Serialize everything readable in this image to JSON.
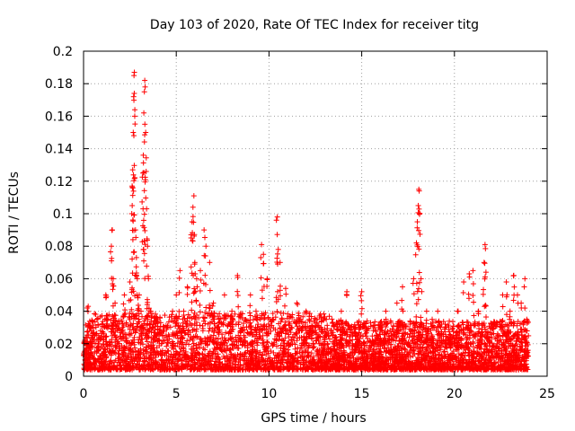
{
  "chart_data": {
    "type": "scatter",
    "title": "Day 103 of 2020, Rate Of TEC Index for receiver titg",
    "xlabel": "GPS time / hours",
    "ylabel": "ROTI / TECUs",
    "xlim": [
      0,
      25
    ],
    "ylim": [
      0,
      0.2
    ],
    "xticks": [
      0,
      5,
      10,
      15,
      20,
      25
    ],
    "yticks": [
      0,
      0.02,
      0.04,
      0.06,
      0.08,
      0.1,
      0.12,
      0.14,
      0.16,
      0.18,
      0.2
    ],
    "xtick_labels": [
      "0",
      "5",
      "10",
      "15",
      "20",
      "25"
    ],
    "ytick_labels": [
      "0",
      "0.02",
      "0.04",
      "0.06",
      "0.08",
      "0.1",
      "0.12",
      "0.14",
      "0.16",
      "0.18",
      "0.2"
    ],
    "grid": true,
    "marker": "+",
    "color": "#ff0000",
    "series": [
      {
        "name": "ROTI",
        "points": [
          [
            0.1,
            0.012
          ],
          [
            0.15,
            0.02
          ],
          [
            0.2,
            0.042
          ],
          [
            0.25,
            0.043
          ],
          [
            0.3,
            0.03
          ],
          [
            0.35,
            0.018
          ],
          [
            0.4,
            0.008
          ],
          [
            0.5,
            0.025
          ],
          [
            0.6,
            0.015
          ],
          [
            0.8,
            0.02
          ],
          [
            1.0,
            0.01
          ],
          [
            1.2,
            0.05
          ],
          [
            1.3,
            0.035
          ],
          [
            1.5,
            0.08
          ],
          [
            1.55,
            0.09
          ],
          [
            1.6,
            0.06
          ],
          [
            1.7,
            0.045
          ],
          [
            1.9,
            0.02
          ],
          [
            2.1,
            0.03
          ],
          [
            2.2,
            0.05
          ],
          [
            2.5,
            0.058
          ],
          [
            2.6,
            0.1
          ],
          [
            2.62,
            0.117
          ],
          [
            2.65,
            0.127
          ],
          [
            2.68,
            0.15
          ],
          [
            2.7,
            0.172
          ],
          [
            2.72,
            0.185
          ],
          [
            2.74,
            0.187
          ],
          [
            2.76,
            0.16
          ],
          [
            2.8,
            0.09
          ],
          [
            2.85,
            0.073
          ],
          [
            2.9,
            0.06
          ],
          [
            3.0,
            0.05
          ],
          [
            3.1,
            0.04
          ],
          [
            3.2,
            0.125
          ],
          [
            3.22,
            0.136
          ],
          [
            3.25,
            0.162
          ],
          [
            3.28,
            0.175
          ],
          [
            3.3,
            0.182
          ],
          [
            3.32,
            0.178
          ],
          [
            3.35,
            0.15
          ],
          [
            3.4,
            0.103
          ],
          [
            3.45,
            0.08
          ],
          [
            3.5,
            0.06
          ],
          [
            3.6,
            0.04
          ],
          [
            3.8,
            0.025
          ],
          [
            4.0,
            0.035
          ],
          [
            4.2,
            0.02
          ],
          [
            4.5,
            0.03
          ],
          [
            4.8,
            0.04
          ],
          [
            5.0,
            0.05
          ],
          [
            5.2,
            0.065
          ],
          [
            5.4,
            0.04
          ],
          [
            5.6,
            0.055
          ],
          [
            5.8,
            0.087
          ],
          [
            5.85,
            0.095
          ],
          [
            5.9,
            0.104
          ],
          [
            5.95,
            0.111
          ],
          [
            6.0,
            0.07
          ],
          [
            6.1,
            0.06
          ],
          [
            6.3,
            0.065
          ],
          [
            6.5,
            0.09
          ],
          [
            6.6,
            0.08
          ],
          [
            6.8,
            0.07
          ],
          [
            7.0,
            0.045
          ],
          [
            7.3,
            0.035
          ],
          [
            7.6,
            0.05
          ],
          [
            8.0,
            0.04
          ],
          [
            8.3,
            0.062
          ],
          [
            8.6,
            0.03
          ],
          [
            9.0,
            0.05
          ],
          [
            9.3,
            0.04
          ],
          [
            9.6,
            0.081
          ],
          [
            9.7,
            0.075
          ],
          [
            9.9,
            0.06
          ],
          [
            10.2,
            0.035
          ],
          [
            10.4,
            0.096
          ],
          [
            10.45,
            0.098
          ],
          [
            10.5,
            0.078
          ],
          [
            10.6,
            0.07
          ],
          [
            10.9,
            0.054
          ],
          [
            11.2,
            0.03
          ],
          [
            11.5,
            0.045
          ],
          [
            11.8,
            0.03
          ],
          [
            12.0,
            0.04
          ],
          [
            12.3,
            0.025
          ],
          [
            12.6,
            0.035
          ],
          [
            12.9,
            0.02
          ],
          [
            13.2,
            0.025
          ],
          [
            13.5,
            0.02
          ],
          [
            13.9,
            0.04
          ],
          [
            14.2,
            0.052
          ],
          [
            14.5,
            0.02
          ],
          [
            14.9,
            0.03
          ],
          [
            15.0,
            0.052
          ],
          [
            15.3,
            0.015
          ],
          [
            15.7,
            0.02
          ],
          [
            16.0,
            0.03
          ],
          [
            16.3,
            0.04
          ],
          [
            16.6,
            0.025
          ],
          [
            16.9,
            0.045
          ],
          [
            17.2,
            0.055
          ],
          [
            17.5,
            0.02
          ],
          [
            17.8,
            0.06
          ],
          [
            17.95,
            0.082
          ],
          [
            18.0,
            0.095
          ],
          [
            18.05,
            0.105
          ],
          [
            18.08,
            0.115
          ],
          [
            18.1,
            0.114
          ],
          [
            18.2,
            0.06
          ],
          [
            18.5,
            0.04
          ],
          [
            18.8,
            0.035
          ],
          [
            19.1,
            0.04
          ],
          [
            19.5,
            0.03
          ],
          [
            19.8,
            0.025
          ],
          [
            20.2,
            0.04
          ],
          [
            20.5,
            0.058
          ],
          [
            20.8,
            0.063
          ],
          [
            21.0,
            0.065
          ],
          [
            21.3,
            0.04
          ],
          [
            21.6,
            0.07
          ],
          [
            21.65,
            0.081
          ],
          [
            21.7,
            0.064
          ],
          [
            22.0,
            0.03
          ],
          [
            22.3,
            0.02
          ],
          [
            22.6,
            0.05
          ],
          [
            22.8,
            0.058
          ],
          [
            23.0,
            0.04
          ],
          [
            23.2,
            0.062
          ],
          [
            23.4,
            0.05
          ],
          [
            23.6,
            0.045
          ],
          [
            23.8,
            0.06
          ],
          [
            23.9,
            0.035
          ]
        ]
      }
    ],
    "dense_bands": [
      {
        "x_range": [
          0.0,
          13.4
        ],
        "y_max": 0.035
      },
      {
        "x_range": [
          13.4,
          24.0
        ],
        "y_max": 0.03
      }
    ]
  }
}
